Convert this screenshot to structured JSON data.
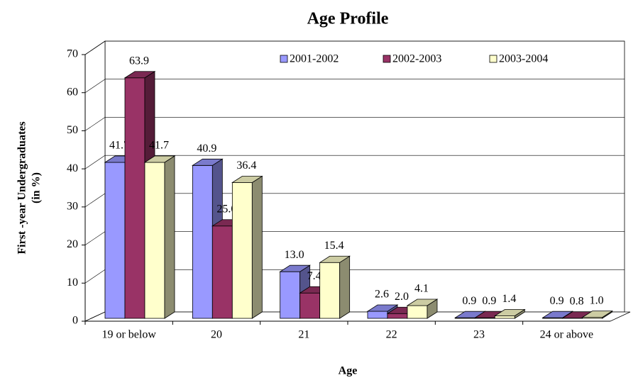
{
  "chart_data": {
    "type": "bar3d",
    "title": "Age Profile",
    "x_label": "Age",
    "y_label": [
      "First -year Undergraduates",
      "(in %)"
    ],
    "categories": [
      "19 or below",
      "20",
      "21",
      "22",
      "23",
      "24 or above"
    ],
    "series": [
      {
        "name": "2001-2002",
        "color": "#9999ff",
        "values": [
          41.7,
          40.9,
          13.0,
          2.6,
          0.9,
          0.9
        ],
        "value_labels": [
          "41.7",
          "40.9",
          "13.0",
          "2.6",
          "0.9",
          "0.9"
        ]
      },
      {
        "name": "2002-2003",
        "color": "#993366",
        "values": [
          63.9,
          25.0,
          7.4,
          2.0,
          0.9,
          0.8
        ],
        "value_labels": [
          "63.9",
          "25.0",
          "7.4",
          "2.0",
          "0.9",
          "0.8"
        ]
      },
      {
        "name": "2003-2004",
        "color": "#ffffcc",
        "values": [
          41.7,
          36.4,
          15.4,
          4.1,
          1.4,
          1.0
        ],
        "value_labels": [
          "41.7",
          "36.4",
          "15.4",
          "4.1",
          "1.4",
          "1.0"
        ]
      }
    ],
    "ylim": [
      0,
      70
    ],
    "yticks": [
      0,
      10,
      20,
      30,
      40,
      50,
      60,
      70
    ],
    "grid": true,
    "legend": "top"
  }
}
